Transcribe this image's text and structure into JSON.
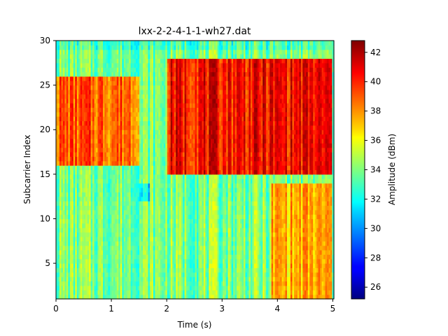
{
  "chart_data": {
    "type": "heatmap",
    "title": "lxx-2-2-4-1-1-wh27.dat",
    "xlabel": "Time (s)",
    "ylabel": "Subcarrier Index",
    "xlim": [
      0,
      5.02
    ],
    "ylim": [
      1,
      30
    ],
    "x_ticks": [
      0,
      1,
      2,
      3,
      4,
      5
    ],
    "y_ticks": [
      5,
      10,
      15,
      20,
      25,
      30
    ],
    "colorbar": {
      "label": "Amplitude (dBm)",
      "colormap": "jet",
      "range": [
        25.2,
        42.8
      ],
      "ticks": [
        26,
        28,
        30,
        32,
        34,
        36,
        38,
        40,
        42
      ]
    },
    "amplitude_by_region": [
      {
        "time_range": [
          0,
          1.5
        ],
        "subcarrier_range": [
          16,
          26
        ],
        "amplitude": 39.0
      },
      {
        "time_range": [
          1.5,
          1.7
        ],
        "subcarrier_range": [
          1,
          14
        ],
        "amplitude": 31.5
      },
      {
        "time_range": [
          2.0,
          5.0
        ],
        "subcarrier_range": [
          15,
          28
        ],
        "amplitude": 40.5
      },
      {
        "time_range": [
          3.9,
          5.0
        ],
        "subcarrier_range": [
          1,
          14
        ],
        "amplitude": 37.5
      },
      {
        "time_range": [
          0,
          5.0
        ],
        "subcarrier_range": [
          29,
          30
        ],
        "amplitude": 33.0
      },
      {
        "time_range": [
          0,
          3.9
        ],
        "subcarrier_range": [
          1,
          12
        ],
        "amplitude": 34.0
      }
    ]
  }
}
